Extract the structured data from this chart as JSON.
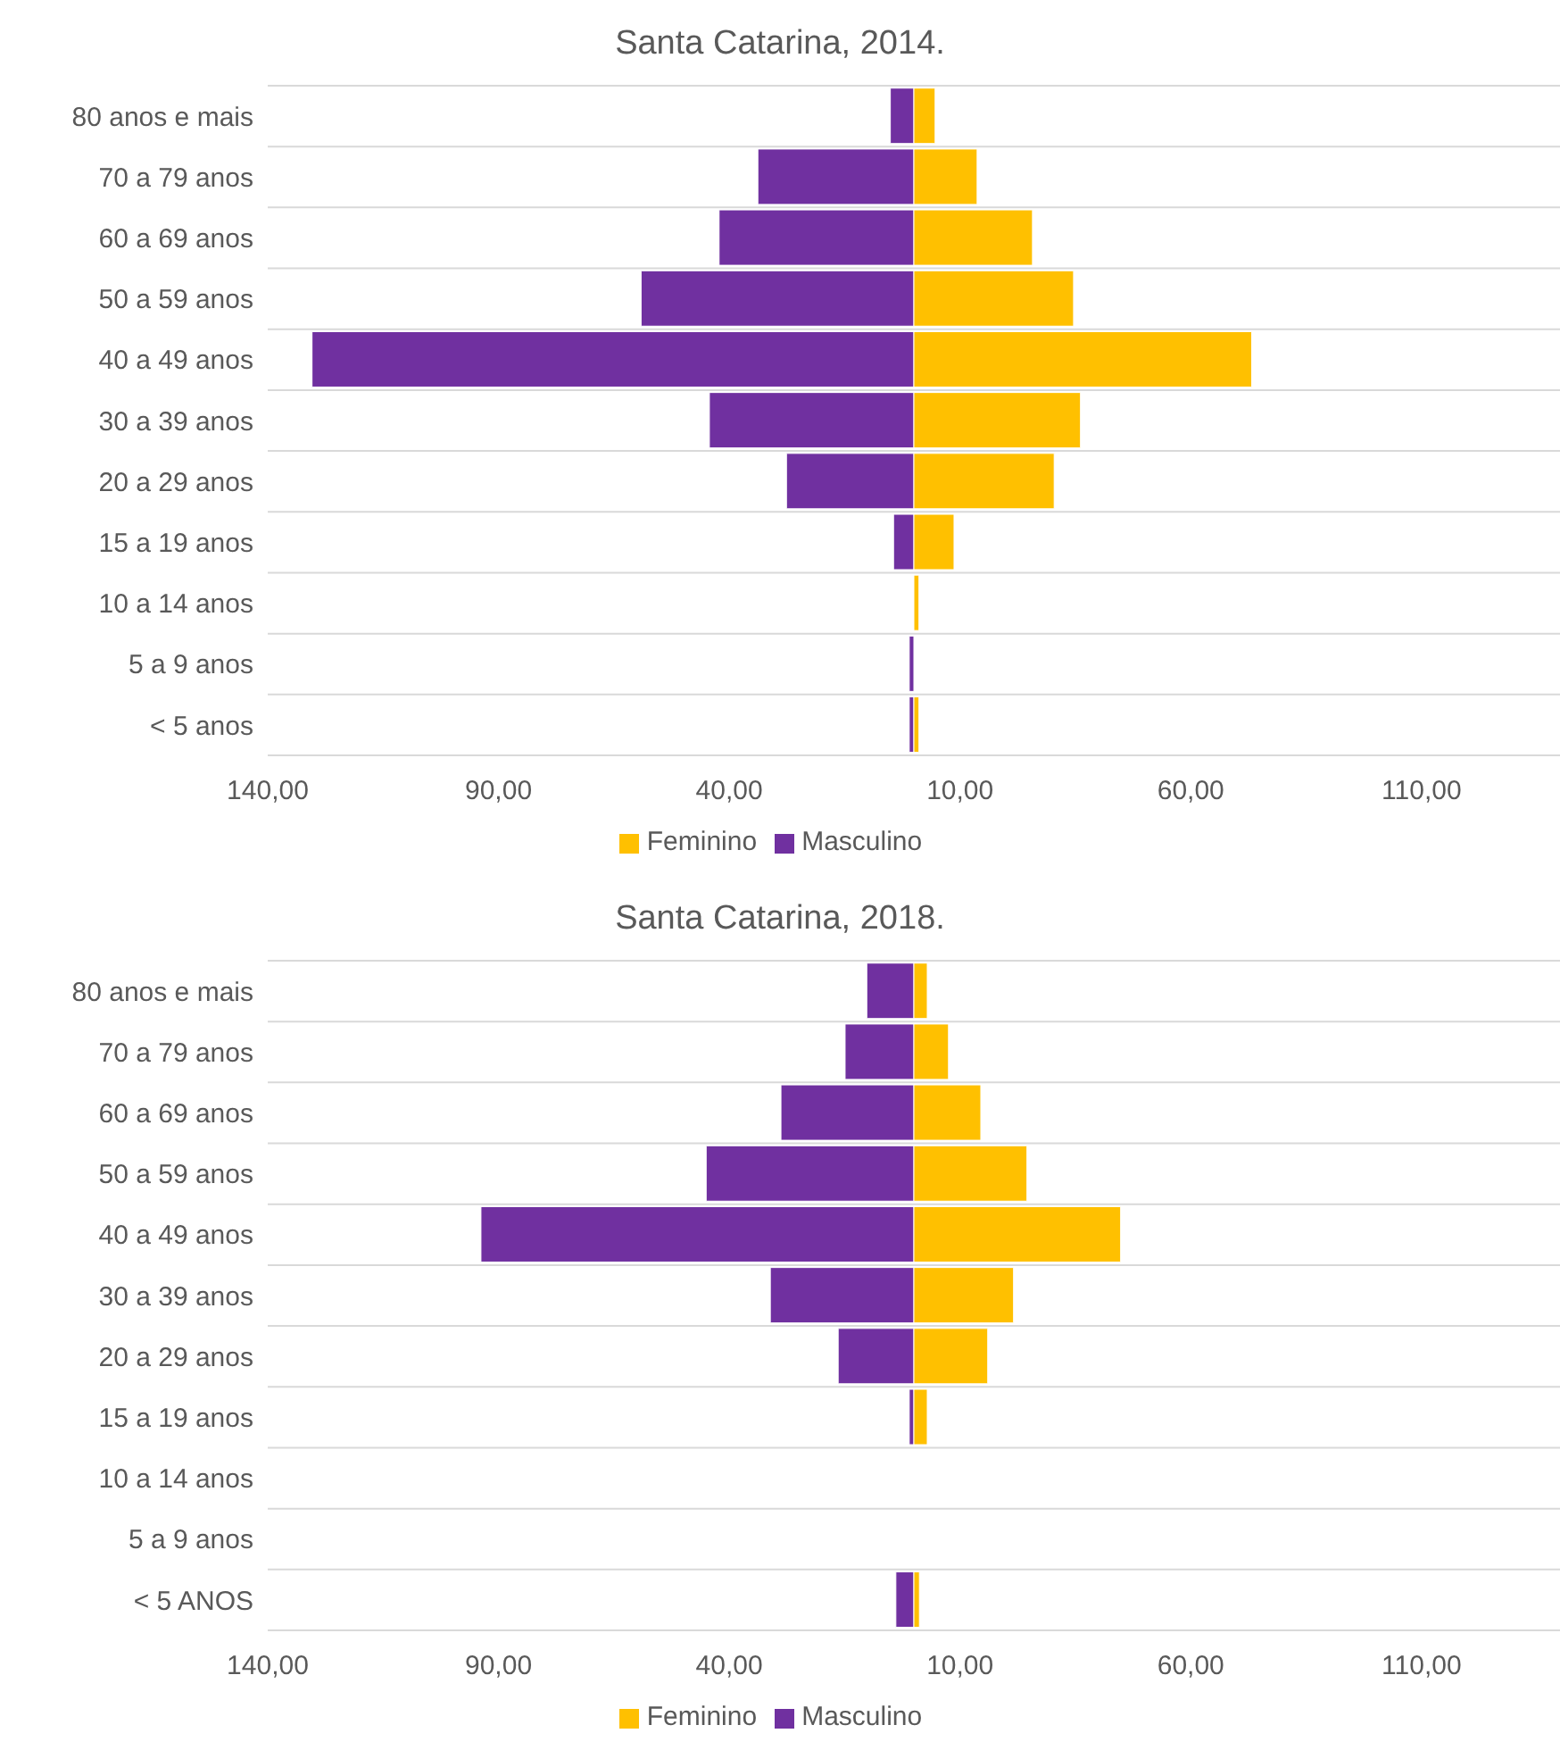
{
  "chart_data": [
    {
      "type": "bar",
      "title": "Santa Catarina, 2014.",
      "orientation": "horizontal",
      "stacked": true,
      "categories": [
        "80 anos e mais",
        "70 a 79 anos",
        "60 a 69 anos",
        "50 a 59 anos",
        "40 a 49 anos",
        "30 a 39 anos",
        "20 a 29 anos",
        "15 a 19 anos",
        "10 a 14 anos",
        "5 a 9 anos",
        "< 5 anos"
      ],
      "series": [
        {
          "name": "Masculino",
          "color": "#7030a0",
          "values": [
            -5.1,
            -33.8,
            -42.2,
            -59.1,
            -130.4,
            -44.3,
            -27.6,
            -4.4,
            0,
            -1.0,
            -1.0
          ]
        },
        {
          "name": "Feminino",
          "color": "#ffc000",
          "values": [
            4.6,
            13.7,
            25.7,
            34.6,
            73.2,
            36.1,
            30.4,
            8.7,
            1.1,
            0,
            1.1
          ]
        }
      ],
      "xlim": [
        -140,
        140
      ],
      "xticks": [
        {
          "value": -140,
          "label": "140,00"
        },
        {
          "value": -90,
          "label": "90,00"
        },
        {
          "value": -40,
          "label": "40,00"
        },
        {
          "value": 10,
          "label": "10,00"
        },
        {
          "value": 60,
          "label": "60,00"
        },
        {
          "value": 110,
          "label": "110,00"
        }
      ],
      "grid": "y",
      "legend": "bottom"
    },
    {
      "type": "bar",
      "title": "Santa Catarina, 2018.",
      "orientation": "horizontal",
      "stacked": true,
      "categories": [
        "80 anos e mais",
        "70 a 79 anos",
        "60 a 69 anos",
        "50 a 59 anos",
        "40 a 49 anos",
        "30 a 39 anos",
        "20 a 29 anos",
        "15 a 19 anos",
        "10 a 14 anos",
        "5 a 9 anos",
        "< 5 ANOS"
      ],
      "series": [
        {
          "name": "Masculino",
          "color": "#7030a0",
          "values": [
            -10.2,
            -14.9,
            -28.8,
            -45.0,
            -93.8,
            -31.1,
            -16.4,
            -1.0,
            0,
            0,
            -3.9
          ]
        },
        {
          "name": "Feminino",
          "color": "#ffc000",
          "values": [
            2.9,
            7.5,
            14.5,
            24.5,
            44.8,
            21.6,
            16.0,
            2.9,
            0,
            0,
            1.2
          ]
        }
      ],
      "xlim": [
        -140,
        140
      ],
      "xticks": [
        {
          "value": -140,
          "label": "140,00"
        },
        {
          "value": -90,
          "label": "90,00"
        },
        {
          "value": -40,
          "label": "40,00"
        },
        {
          "value": 10,
          "label": "10,00"
        },
        {
          "value": 60,
          "label": "60,00"
        },
        {
          "value": 110,
          "label": "110,00"
        }
      ],
      "grid": "y",
      "legend": "bottom"
    }
  ]
}
